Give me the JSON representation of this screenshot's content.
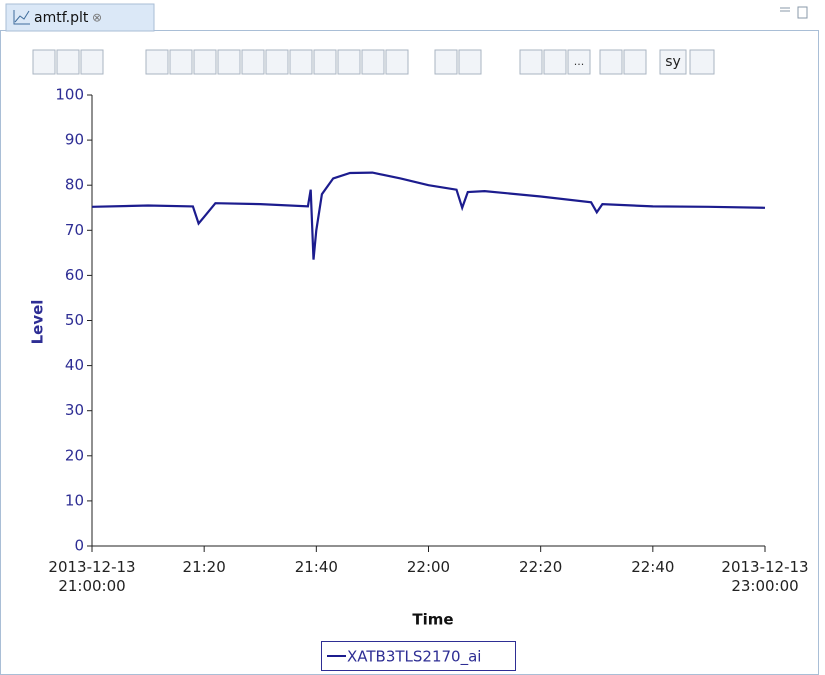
{
  "tab": {
    "title": "amtf.plt"
  },
  "toolbar": {
    "more": "...",
    "sync": "sy"
  },
  "chart_data": {
    "type": "line",
    "xlabel": "Time",
    "ylabel": "Level",
    "legend": "bottom",
    "x": [
      "2013-12-13 21:00:00",
      "2013-12-13 21:10:00",
      "2013-12-13 21:18:00",
      "2013-12-13 21:19:00",
      "2013-12-13 21:20:00",
      "2013-12-13 21:22:00",
      "2013-12-13 21:30:00",
      "2013-12-13 21:38:30",
      "2013-12-13 21:39:00",
      "2013-12-13 21:39:30",
      "2013-12-13 21:40:00",
      "2013-12-13 21:41:00",
      "2013-12-13 21:43:00",
      "2013-12-13 21:46:00",
      "2013-12-13 21:50:00",
      "2013-12-13 21:55:00",
      "2013-12-13 22:00:00",
      "2013-12-13 22:05:00",
      "2013-12-13 22:06:00",
      "2013-12-13 22:07:00",
      "2013-12-13 22:10:00",
      "2013-12-13 22:20:00",
      "2013-12-13 22:29:00",
      "2013-12-13 22:30:00",
      "2013-12-13 22:31:00",
      "2013-12-13 22:40:00",
      "2013-12-13 22:50:00",
      "2013-12-13 23:00:00"
    ],
    "series": [
      {
        "name": "XATB3TLS2170_ai",
        "color": "#1c1c8e",
        "values": [
          75.2,
          75.5,
          75.3,
          71.5,
          73,
          76,
          75.8,
          75.3,
          79,
          63.5,
          70,
          78,
          81.5,
          82.7,
          82.8,
          81.5,
          80,
          79,
          75,
          78.5,
          78.7,
          77.5,
          76.2,
          74,
          75.8,
          75.3,
          75.2,
          75
        ]
      }
    ],
    "xlim": [
      "2013-12-13 21:00:00",
      "2013-12-13 23:00:00"
    ],
    "xticks": [
      {
        "value": "2013-12-13 21:00:00",
        "label": "2013-12-13\n21:00:00"
      },
      {
        "value": "2013-12-13 21:20:00",
        "label": "21:20"
      },
      {
        "value": "2013-12-13 21:40:00",
        "label": "21:40"
      },
      {
        "value": "2013-12-13 22:00:00",
        "label": "22:00"
      },
      {
        "value": "2013-12-13 22:20:00",
        "label": "22:20"
      },
      {
        "value": "2013-12-13 22:40:00",
        "label": "22:40"
      },
      {
        "value": "2013-12-13 23:00:00",
        "label": "2013-12-13\n23:00:00"
      }
    ],
    "ylim": [
      0,
      100
    ],
    "yticks": [
      0,
      10,
      20,
      30,
      40,
      50,
      60,
      70,
      80,
      90,
      100
    ]
  }
}
